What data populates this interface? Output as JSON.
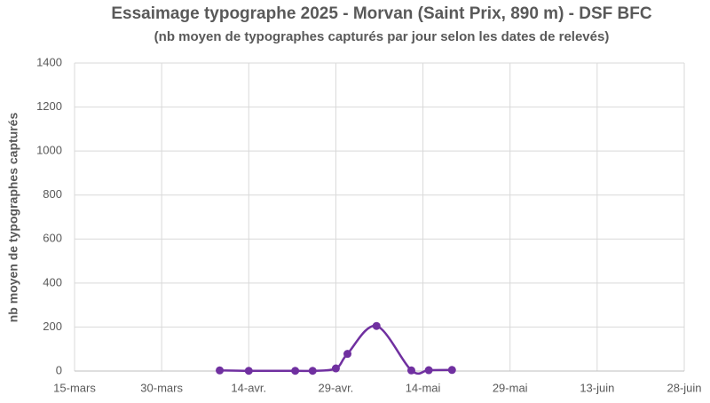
{
  "chart_data": {
    "type": "line",
    "title": "Essaimage typographe 2025 - Morvan (Saint Prix, 890 m) - DSF BFC",
    "subtitle": "(nb moyen de typographes capturés par jour selon les dates de relevés)",
    "y_label": "nb moyen de typographes capturés",
    "x": [
      "04-09",
      "04-14",
      "04-22",
      "04-25",
      "04-29",
      "05-01",
      "05-06",
      "05-12",
      "05-15",
      "05-19"
    ],
    "series": [
      {
        "name": "nb moyen de typographes capturés",
        "color": "#7030a0",
        "values": [
          3,
          1,
          1,
          1,
          12,
          78,
          205,
          3,
          4,
          5
        ]
      }
    ],
    "xlim": [
      "03-15",
      "06-28"
    ],
    "xticks": [
      {
        "value": "03-15",
        "label": "15-mars"
      },
      {
        "value": "03-30",
        "label": "30-mars"
      },
      {
        "value": "04-14",
        "label": "14-avr."
      },
      {
        "value": "04-29",
        "label": "29-avr."
      },
      {
        "value": "05-14",
        "label": "14-mai"
      },
      {
        "value": "05-29",
        "label": "29-mai"
      },
      {
        "value": "06-13",
        "label": "13-juin"
      },
      {
        "value": "06-28",
        "label": "28-juin"
      }
    ],
    "ylim": [
      0,
      1400
    ],
    "yticks": [
      0,
      200,
      400,
      600,
      800,
      1000,
      1200,
      1400
    ],
    "grid": true
  }
}
